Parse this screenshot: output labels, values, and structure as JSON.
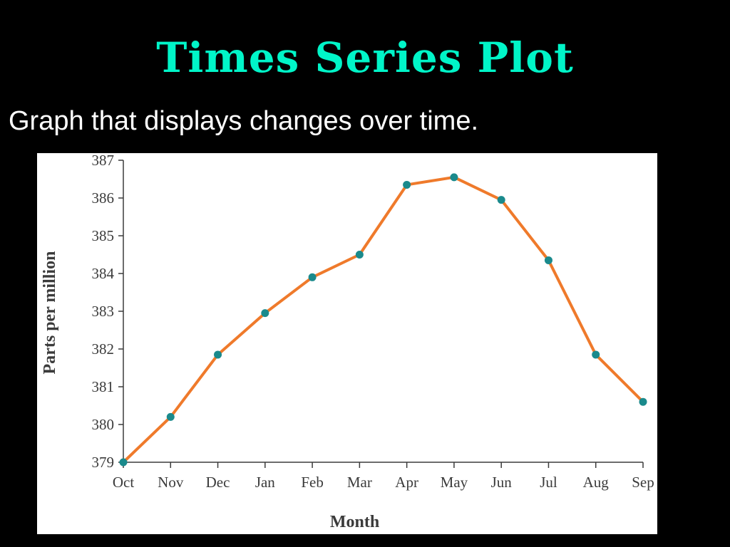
{
  "slide": {
    "title": "Times Series Plot",
    "subtitle": "Graph that displays changes over time."
  },
  "colors": {
    "background": "#000000",
    "title": "#00f5c8",
    "subtitle": "#ffffff",
    "panel": "#ffffff",
    "line": "#ef7a2b",
    "marker": "#1a8a8c",
    "axis": "#3b3b3b"
  },
  "chart_data": {
    "type": "line",
    "title": "",
    "xlabel": "Month",
    "ylabel": "Parts per million",
    "categories": [
      "Oct",
      "Nov",
      "Dec",
      "Jan",
      "Feb",
      "Mar",
      "Apr",
      "May",
      "Jun",
      "Jul",
      "Aug",
      "Sep"
    ],
    "values": [
      379.0,
      380.2,
      381.85,
      382.95,
      383.9,
      384.5,
      386.35,
      386.55,
      385.95,
      384.35,
      381.85,
      380.6
    ],
    "ylim": [
      379,
      387
    ],
    "yticks": [
      379,
      380,
      381,
      382,
      383,
      384,
      385,
      386,
      387
    ],
    "grid": false,
    "legend": "none",
    "markers": true
  }
}
